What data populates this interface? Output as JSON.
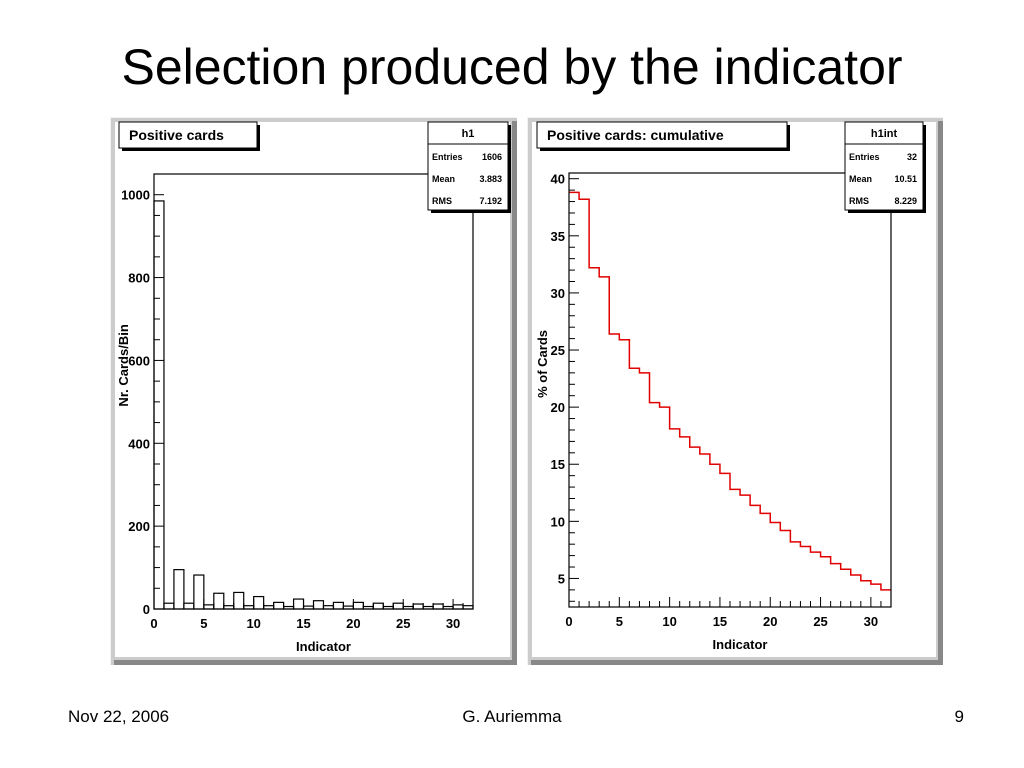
{
  "slide": {
    "title": "Selection produced by the indicator",
    "footer_date": "Nov 22, 2006",
    "footer_author": "G. Auriemma",
    "page_number": "9"
  },
  "colors": {
    "canvas": "#cccccc",
    "frame": "#ffffff",
    "h1_line": "#000000",
    "h1int_line": "#e00000"
  },
  "chart_data": [
    {
      "type": "bar",
      "title": "Positive cards",
      "xlabel": "Indicator",
      "ylabel": "Nr. Cards/Bin",
      "xlim": [
        0,
        32
      ],
      "ylim": [
        0,
        1050
      ],
      "xticks": [
        0,
        5,
        10,
        15,
        20,
        25,
        30
      ],
      "yticks": [
        0,
        200,
        400,
        600,
        800,
        1000
      ],
      "grid": false,
      "stats_box": {
        "name": "h1",
        "rows": [
          {
            "label": "Entries",
            "value": "1606"
          },
          {
            "label": "Mean",
            "value": "3.883"
          },
          {
            "label": "RMS",
            "value": "7.192"
          }
        ]
      },
      "bin_edges": [
        0,
        1,
        2,
        3,
        4,
        5,
        6,
        7,
        8,
        9,
        10,
        11,
        12,
        13,
        14,
        15,
        16,
        17,
        18,
        19,
        20,
        21,
        22,
        23,
        24,
        25,
        26,
        27,
        28,
        29,
        30,
        31,
        32
      ],
      "values": [
        985,
        14,
        95,
        14,
        82,
        10,
        38,
        8,
        40,
        8,
        30,
        8,
        16,
        6,
        24,
        7,
        20,
        8,
        16,
        7,
        16,
        6,
        14,
        6,
        14,
        6,
        12,
        6,
        12,
        6,
        10,
        8
      ]
    },
    {
      "type": "line",
      "step": true,
      "title": "Positive cards: cumulative",
      "xlabel": "Indicator",
      "ylabel": "% of Cards",
      "xlim": [
        0,
        32
      ],
      "ylim": [
        2.5,
        40.5
      ],
      "xticks": [
        0,
        5,
        10,
        15,
        20,
        25,
        30
      ],
      "yticks": [
        5,
        10,
        15,
        20,
        25,
        30,
        35,
        40
      ],
      "grid": false,
      "stats_box": {
        "name": "h1int",
        "rows": [
          {
            "label": "Entries",
            "value": "32"
          },
          {
            "label": "Mean",
            "value": "10.51"
          },
          {
            "label": "RMS",
            "value": "8.229"
          }
        ]
      },
      "bin_edges": [
        0,
        1,
        2,
        3,
        4,
        5,
        6,
        7,
        8,
        9,
        10,
        11,
        12,
        13,
        14,
        15,
        16,
        17,
        18,
        19,
        20,
        21,
        22,
        23,
        24,
        25,
        26,
        27,
        28,
        29,
        30,
        31,
        32
      ],
      "values": [
        38.8,
        38.2,
        32.2,
        31.4,
        26.4,
        25.9,
        23.4,
        23.0,
        20.4,
        20.0,
        18.1,
        17.4,
        16.5,
        15.9,
        15.0,
        14.2,
        12.8,
        12.3,
        11.4,
        10.7,
        9.9,
        9.2,
        8.2,
        7.8,
        7.3,
        6.9,
        6.3,
        5.8,
        5.3,
        4.8,
        4.5,
        4.0
      ]
    }
  ]
}
